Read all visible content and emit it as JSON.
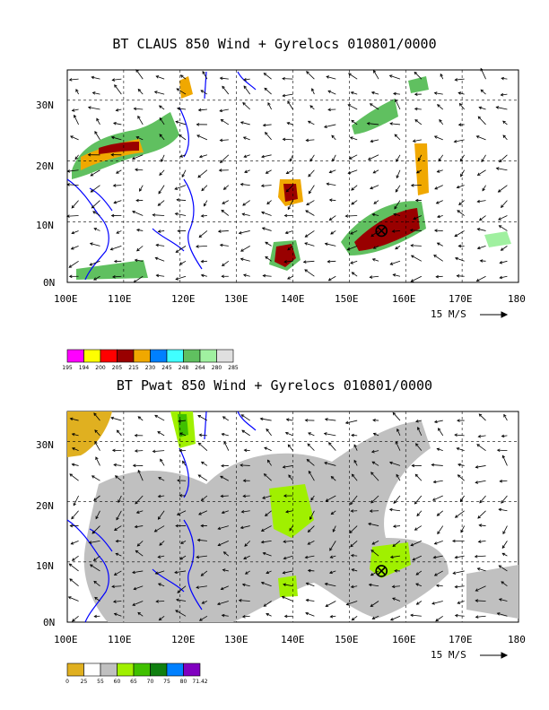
{
  "panels": [
    {
      "title": "BT CLAUS 850 Wind + Gyrelocs 010801/0000",
      "lat_labels": [
        "30N",
        "20N",
        "10N",
        "0N"
      ],
      "lon_labels": [
        "100E",
        "110E",
        "120E",
        "130E",
        "140E",
        "150E",
        "160E",
        "170E",
        "180"
      ],
      "scale_label": "15 M/S",
      "colorbar_labels": [
        "195",
        "194",
        "200",
        "205",
        "215",
        "230",
        "245",
        "248",
        "264",
        "280",
        "285"
      ],
      "colorbar_colors": [
        "#ff00ff",
        "#ffff00",
        "#ff0000",
        "#990000",
        "#f0a800",
        "#0080ff",
        "#40ffff",
        "#60c060",
        "#a0f0a0",
        "#e0e0e0"
      ],
      "cyclone_marker": {
        "lon": 155.7,
        "lat": 8.5
      }
    },
    {
      "title": "BT Pwat 850 Wind + Gyrelocs 010801/0000",
      "lat_labels": [
        "30N",
        "20N",
        "10N",
        "0N"
      ],
      "lon_labels": [
        "100E",
        "110E",
        "120E",
        "130E",
        "140E",
        "150E",
        "160E",
        "170E",
        "180"
      ],
      "scale_label": "15 M/S",
      "colorbar_labels": [
        "0",
        "25",
        "55",
        "60",
        "65",
        "70",
        "75",
        "80",
        "71.42"
      ],
      "colorbar_colors": [
        "#e0b020",
        "#ffffff",
        "#c0c0c0",
        "#a0f000",
        "#40c000",
        "#108010",
        "#0080ff",
        "#8000c0"
      ],
      "cyclone_marker": {
        "lon": 155.7,
        "lat": 8.5
      }
    }
  ]
}
